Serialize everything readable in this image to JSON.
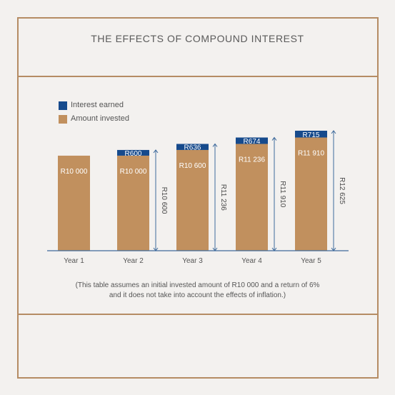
{
  "title": "THE EFFECTS OF COMPOUND INTEREST",
  "colors": {
    "frame": "#b58c64",
    "interest": "#164a8c",
    "invested": "#c1905e",
    "bracket": "#3e6a9c",
    "label": "#ffffff"
  },
  "legend": [
    {
      "label": "Interest earned",
      "color": "#164a8c"
    },
    {
      "label": "Amount invested",
      "color": "#c1905e"
    }
  ],
  "chart_data": {
    "type": "bar",
    "stacked": true,
    "categories": [
      "Year 1",
      "Year 2",
      "Year 3",
      "Year 4",
      "Year 5"
    ],
    "series": [
      {
        "name": "Amount invested",
        "values": [
          10000,
          10000,
          10600,
          11236,
          11910
        ],
        "labels": [
          "R10 000",
          "R10 000",
          "R10 600",
          "R11 236",
          "R11 910"
        ]
      },
      {
        "name": "Interest earned",
        "values": [
          0,
          600,
          636,
          674,
          715
        ],
        "labels": [
          "",
          "R600",
          "R636",
          "R674",
          "R715"
        ]
      }
    ],
    "totals": [
      10000,
      10600,
      11236,
      11910,
      12625
    ],
    "total_labels": [
      "",
      "R10 600",
      "R11 236",
      "R11 910",
      "R12 625"
    ],
    "ylim": [
      0,
      12625
    ]
  },
  "note": {
    "line1": "(This table assumes an initial invested amount of R10 000 and a return of 6%",
    "line2": "and it does not take into account the effects of inflation.)"
  }
}
